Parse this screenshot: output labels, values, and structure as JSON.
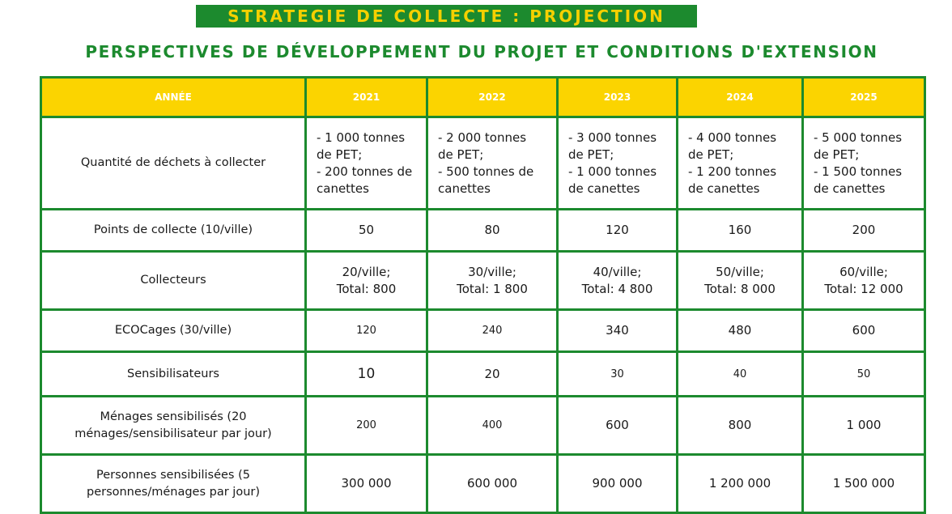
{
  "banner": "STRATEGIE DE COLLECTE : PROJECTION",
  "subtitle": "PERSPECTIVES DE DÉVELOPPEMENT DU PROJET ET CONDITIONS D'EXTENSION",
  "headers": [
    "ANNÉE",
    "2021",
    "2022",
    "2023",
    "2024",
    "2025"
  ],
  "rows": [
    {
      "label": "Quantité de déchets à collecter",
      "cells": [
        [
          "- 1 000 tonnes",
          "de PET;",
          "- 200 tonnes de",
          "canettes"
        ],
        [
          "- 2 000 tonnes",
          "de PET;",
          "- 500 tonnes de",
          "canettes"
        ],
        [
          "- 3 000 tonnes",
          "de PET;",
          "- 1 000 tonnes",
          "de canettes"
        ],
        [
          "- 4 000 tonnes",
          "de PET;",
          "- 1 200 tonnes",
          "de canettes"
        ],
        [
          "- 5 000 tonnes",
          "de PET;",
          "- 1 500 tonnes",
          "de canettes"
        ]
      ]
    },
    {
      "label": "Points de collecte (10/ville)",
      "cells": [
        "50",
        "80",
        "120",
        "160",
        "200"
      ]
    },
    {
      "label": "Collecteurs",
      "cells": [
        [
          "20/ville;",
          "Total: 800"
        ],
        [
          "30/ville;",
          "Total: 1 800"
        ],
        [
          "40/ville;",
          "Total: 4 800"
        ],
        [
          "50/ville;",
          "Total: 8 000"
        ],
        [
          "60/ville;",
          "Total: 12 000"
        ]
      ]
    },
    {
      "label": "ECOCages (30/ville)",
      "cells": [
        "120",
        "240",
        "340",
        "480",
        "600"
      ]
    },
    {
      "label": "Sensibilisateurs",
      "cells": [
        "10",
        "20",
        "30",
        "40",
        "50"
      ]
    },
    {
      "label": [
        "Ménages sensibilisés (20",
        "ménages/sensibilisateur par jour)"
      ],
      "cells": [
        "200",
        "400",
        "600",
        "800",
        "1 000"
      ]
    },
    {
      "label": [
        "Personnes sensibilisées (5",
        "personnes/ménages par jour)"
      ],
      "cells": [
        "300 000",
        "600 000",
        "900 000",
        "1 200 000",
        "1 500 000"
      ]
    }
  ]
}
